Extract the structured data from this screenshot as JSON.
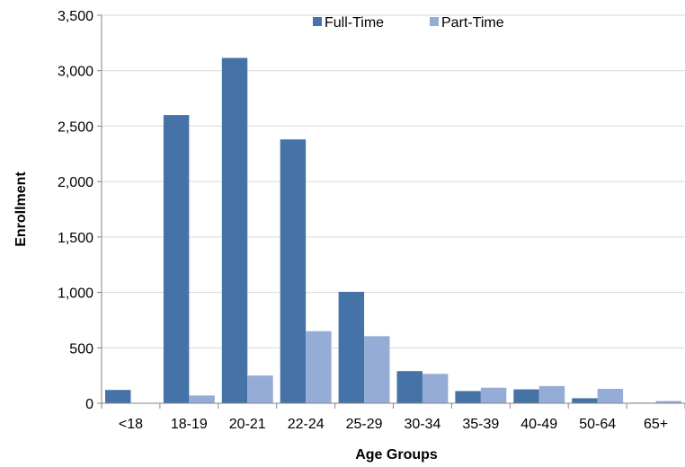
{
  "chart_data": {
    "type": "bar",
    "xlabel": "Age Groups",
    "ylabel": "Enrollment",
    "ylim": [
      0,
      3500
    ],
    "ytick_step": 500,
    "grid": true,
    "legend_position": "top-center",
    "categories": [
      "<18",
      "18-19",
      "20-21",
      "22-24",
      "25-29",
      "30-34",
      "35-39",
      "40-49",
      "50-64",
      "65+"
    ],
    "series": [
      {
        "name": "Full-Time",
        "color": "#4572A7",
        "values": [
          120,
          2600,
          3115,
          2380,
          1005,
          290,
          110,
          125,
          45,
          5
        ]
      },
      {
        "name": "Part-Time",
        "color": "#95ADD6",
        "values": [
          0,
          70,
          250,
          650,
          605,
          265,
          140,
          155,
          130,
          20
        ]
      }
    ]
  }
}
